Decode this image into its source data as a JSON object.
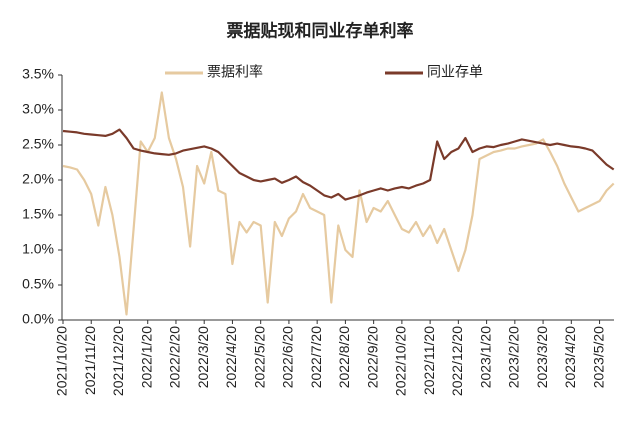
{
  "chart_data": {
    "type": "line",
    "title": "票据贴现和同业存单利率",
    "categories": [
      "2021/10/20",
      null,
      null,
      null,
      "2021/11/20",
      null,
      null,
      null,
      "2021/12/20",
      null,
      null,
      null,
      "2022/1/20",
      null,
      null,
      null,
      "2022/2/20",
      null,
      null,
      null,
      "2022/3/20",
      null,
      null,
      null,
      "2022/4/20",
      null,
      null,
      null,
      "2022/5/20",
      null,
      null,
      null,
      "2022/6/20",
      null,
      null,
      null,
      "2022/7/20",
      null,
      null,
      null,
      "2022/8/20",
      null,
      null,
      null,
      "2022/9/20",
      null,
      null,
      null,
      "2022/10/20",
      null,
      null,
      null,
      "2022/11/20",
      null,
      null,
      null,
      "2022/12/20",
      null,
      null,
      null,
      "2023/1/20",
      null,
      null,
      null,
      "2023/2/20",
      null,
      null,
      null,
      "2023/3/20",
      null,
      null,
      null,
      "2023/4/20",
      null,
      null,
      null,
      "2023/5/20",
      null,
      null
    ],
    "series": [
      {
        "name": "票据利率",
        "color": "#e6caa0",
        "values": [
          2.2,
          2.18,
          2.15,
          2.0,
          1.8,
          1.35,
          1.9,
          1.5,
          0.9,
          0.08,
          1.3,
          2.55,
          2.4,
          2.6,
          3.25,
          2.6,
          2.3,
          1.9,
          1.05,
          2.2,
          1.95,
          2.4,
          1.85,
          1.8,
          0.8,
          1.4,
          1.25,
          1.4,
          1.35,
          0.25,
          1.4,
          1.2,
          1.45,
          1.55,
          1.8,
          1.6,
          1.55,
          1.5,
          0.25,
          1.35,
          1.0,
          0.9,
          1.85,
          1.4,
          1.6,
          1.55,
          1.7,
          1.5,
          1.3,
          1.25,
          1.4,
          1.2,
          1.35,
          1.1,
          1.3,
          1.0,
          0.7,
          1.0,
          1.5,
          2.3,
          2.35,
          2.4,
          2.42,
          2.45,
          2.45,
          2.48,
          2.5,
          2.52,
          2.58,
          2.4,
          2.2,
          1.95,
          1.75,
          1.55,
          1.6,
          1.65,
          1.7,
          1.85,
          1.95
        ]
      },
      {
        "name": "同业存单",
        "color": "#7a3a2a",
        "values": [
          2.7,
          2.69,
          2.68,
          2.66,
          2.65,
          2.64,
          2.63,
          2.66,
          2.72,
          2.6,
          2.45,
          2.42,
          2.4,
          2.38,
          2.37,
          2.36,
          2.38,
          2.42,
          2.44,
          2.46,
          2.48,
          2.45,
          2.4,
          2.3,
          2.2,
          2.1,
          2.05,
          2.0,
          1.98,
          2.0,
          2.02,
          1.96,
          2.0,
          2.05,
          1.97,
          1.92,
          1.85,
          1.78,
          1.75,
          1.8,
          1.72,
          1.75,
          1.78,
          1.82,
          1.85,
          1.88,
          1.85,
          1.88,
          1.9,
          1.88,
          1.92,
          1.95,
          2.0,
          2.55,
          2.3,
          2.4,
          2.45,
          2.6,
          2.4,
          2.45,
          2.48,
          2.47,
          2.5,
          2.52,
          2.55,
          2.58,
          2.56,
          2.54,
          2.52,
          2.5,
          2.52,
          2.5,
          2.48,
          2.47,
          2.45,
          2.42,
          2.32,
          2.22,
          2.15
        ]
      }
    ],
    "ylim": [
      0,
      3.5
    ],
    "yticks": [
      {
        "value": 0,
        "label": "0.0%"
      },
      {
        "value": 0.5,
        "label": "0.5%"
      },
      {
        "value": 1,
        "label": "1.0%"
      },
      {
        "value": 1.5,
        "label": "1.5%"
      },
      {
        "value": 2,
        "label": "2.0%"
      },
      {
        "value": 2.5,
        "label": "2.5%"
      },
      {
        "value": 3,
        "label": "3.0%"
      },
      {
        "value": 3.5,
        "label": "3.5%"
      }
    ],
    "grid": false,
    "legend": "top"
  }
}
